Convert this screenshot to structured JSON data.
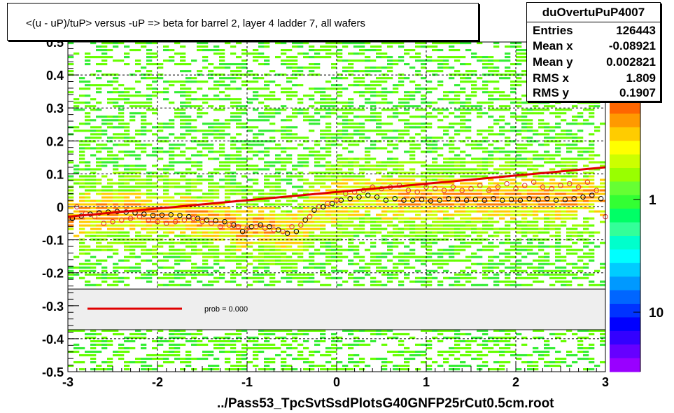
{
  "title": "<(u - uP)/tuP> versus  -uP => beta for barrel 2, layer 4 ladder 7, all wafers",
  "x_axis_label": "../Pass53_TpcSvtSsdPlotsG40GNFP25rCut0.5cm.root",
  "stats": {
    "name": "duOvertuPuP4007",
    "rows": [
      {
        "label": "Entries",
        "value": "126443"
      },
      {
        "label": "Mean x",
        "value": "-0.08921"
      },
      {
        "label": "Mean y",
        "value": "0.002821"
      },
      {
        "label": "RMS x",
        "value": "1.809"
      },
      {
        "label": "RMS y",
        "value": "0.1907"
      }
    ]
  },
  "legend": {
    "fit_label": "prob = 0.000"
  },
  "colors": {
    "fit_line": "#e00000",
    "black_markers": "#000000",
    "red_markers": "#e03030"
  },
  "chart_data": {
    "type": "scatter",
    "title": "<(u - uP)/tuP> versus  -uP => beta for barrel 2, layer 4 ladder 7, all wafers",
    "xlabel": "../Pass53_TpcSvtSsdPlotsG40GNFP25rCut0.5cm.root",
    "ylabel": "",
    "xlim": [
      -3,
      3
    ],
    "ylim": [
      -0.5,
      0.5
    ],
    "x_ticks": [
      "-3",
      "-2",
      "-1",
      "0",
      "1",
      "2",
      "3"
    ],
    "y_ticks": [
      "-0.5",
      "-0.4",
      "-0.3",
      "-0.2",
      "-0.1",
      "0",
      "0.1",
      "0.2",
      "0.3",
      "0.4",
      "0.5"
    ],
    "z_scale": "log",
    "z_ticks": [
      "1",
      "10"
    ],
    "grid": true,
    "fit": {
      "name": "prob = 0.000",
      "x": [
        -3,
        3
      ],
      "y": [
        -0.03,
        0.12
      ]
    },
    "series": [
      {
        "marker": "black-circle",
        "x": [
          -2.95,
          -2.85,
          -2.75,
          -2.65,
          -2.55,
          -2.45,
          -2.35,
          -2.25,
          -2.15,
          -2.05,
          -1.95,
          -1.85,
          -1.75,
          -1.65,
          -1.55,
          -1.45,
          -1.35,
          -1.25,
          -1.15,
          -1.05,
          -0.95,
          -0.85,
          -0.75,
          -0.65,
          -0.55,
          -0.45,
          -0.35,
          -0.25,
          -0.15,
          -0.05,
          0.05,
          0.15,
          0.25,
          0.35,
          0.45,
          0.55,
          0.65,
          0.75,
          0.85,
          0.95,
          1.05,
          1.15,
          1.25,
          1.35,
          1.45,
          1.55,
          1.65,
          1.75,
          1.85,
          1.95,
          2.05,
          2.15,
          2.25,
          2.35,
          2.45,
          2.55,
          2.65,
          2.75,
          2.85,
          2.95
        ],
        "y": [
          -0.035,
          -0.028,
          -0.022,
          -0.018,
          -0.016,
          -0.014,
          -0.016,
          -0.018,
          -0.022,
          -0.026,
          -0.025,
          -0.024,
          -0.026,
          -0.03,
          -0.035,
          -0.04,
          -0.042,
          -0.045,
          -0.055,
          -0.075,
          -0.06,
          -0.055,
          -0.06,
          -0.07,
          -0.08,
          -0.075,
          -0.04,
          -0.01,
          0.0,
          0.01,
          0.02,
          0.025,
          0.03,
          0.035,
          0.03,
          0.02,
          0.025,
          0.02,
          0.02,
          0.022,
          0.018,
          0.02,
          0.025,
          0.022,
          0.02,
          0.022,
          0.02,
          0.025,
          0.02,
          0.022,
          0.02,
          0.025,
          0.022,
          0.025,
          0.02,
          0.022,
          0.025,
          0.03,
          0.035,
          0.025
        ]
      },
      {
        "marker": "red-circle",
        "x": [
          -2.9,
          -2.8,
          -2.7,
          -2.6,
          -2.5,
          -2.4,
          -2.3,
          -2.2,
          -2.1,
          -2.0,
          -1.9,
          -1.8,
          -1.7,
          -1.6,
          -1.5,
          -1.4,
          -1.3,
          -1.2,
          -1.1,
          -1.0,
          -0.9,
          -0.8,
          -0.7,
          -0.6,
          -0.5,
          -0.4,
          -0.3,
          -0.2,
          -0.1,
          0.0,
          0.1,
          0.2,
          0.3,
          0.4,
          0.5,
          0.6,
          0.7,
          0.8,
          0.9,
          1.0,
          1.1,
          1.2,
          1.3,
          1.4,
          1.5,
          1.6,
          1.7,
          1.8,
          1.9,
          2.0,
          2.1,
          2.2,
          2.3,
          2.4,
          2.5,
          2.6,
          2.7,
          2.8,
          2.9,
          3.0
        ],
        "y": [
          0.0,
          -0.02,
          -0.03,
          -0.05,
          -0.045,
          -0.04,
          -0.035,
          -0.03,
          -0.04,
          -0.045,
          -0.05,
          -0.045,
          -0.04,
          -0.035,
          -0.045,
          -0.05,
          -0.06,
          -0.055,
          -0.06,
          -0.065,
          -0.06,
          -0.065,
          -0.07,
          -0.075,
          -0.06,
          -0.055,
          -0.03,
          0.0,
          0.01,
          0.02,
          0.04,
          0.045,
          0.05,
          0.06,
          0.055,
          0.06,
          0.065,
          0.05,
          0.045,
          0.06,
          0.055,
          0.05,
          0.06,
          0.05,
          0.055,
          0.065,
          0.05,
          0.06,
          0.07,
          0.055,
          0.065,
          0.075,
          0.06,
          0.055,
          0.065,
          0.07,
          0.06,
          0.075,
          0.05,
          -0.03
        ]
      }
    ]
  }
}
